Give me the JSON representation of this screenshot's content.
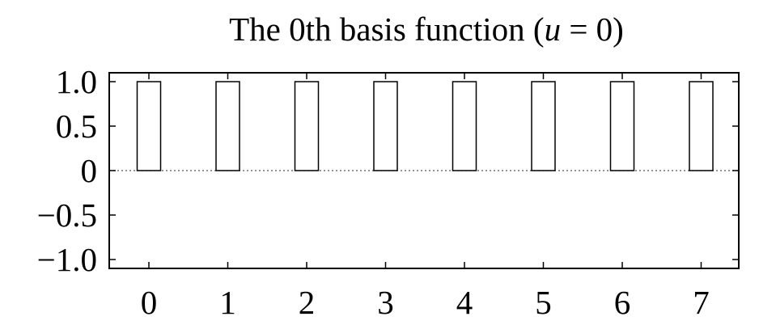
{
  "chart_data": {
    "type": "bar",
    "title_prefix": "The 0th basis function (",
    "title_var": "u",
    "title_suffix": " = 0)",
    "categories": [
      "0",
      "1",
      "2",
      "3",
      "4",
      "5",
      "6",
      "7"
    ],
    "x": [
      0,
      1,
      2,
      3,
      4,
      5,
      6,
      7
    ],
    "values": [
      1.0,
      1.0,
      1.0,
      1.0,
      1.0,
      1.0,
      1.0,
      1.0
    ],
    "xlabel": "",
    "ylabel": "",
    "xlim": [
      -0.5,
      7.5
    ],
    "ylim": [
      -1.1,
      1.1
    ],
    "yticks": [
      1.0,
      0.5,
      0,
      -0.5,
      -1.0
    ],
    "ytick_labels": [
      "1.0",
      "0.5",
      "0",
      "−0.5",
      "−1.0"
    ],
    "zero_line": "dotted",
    "grid": false,
    "legend": "none",
    "bar_fill": "#ffffff",
    "bar_stroke": "#000000"
  }
}
